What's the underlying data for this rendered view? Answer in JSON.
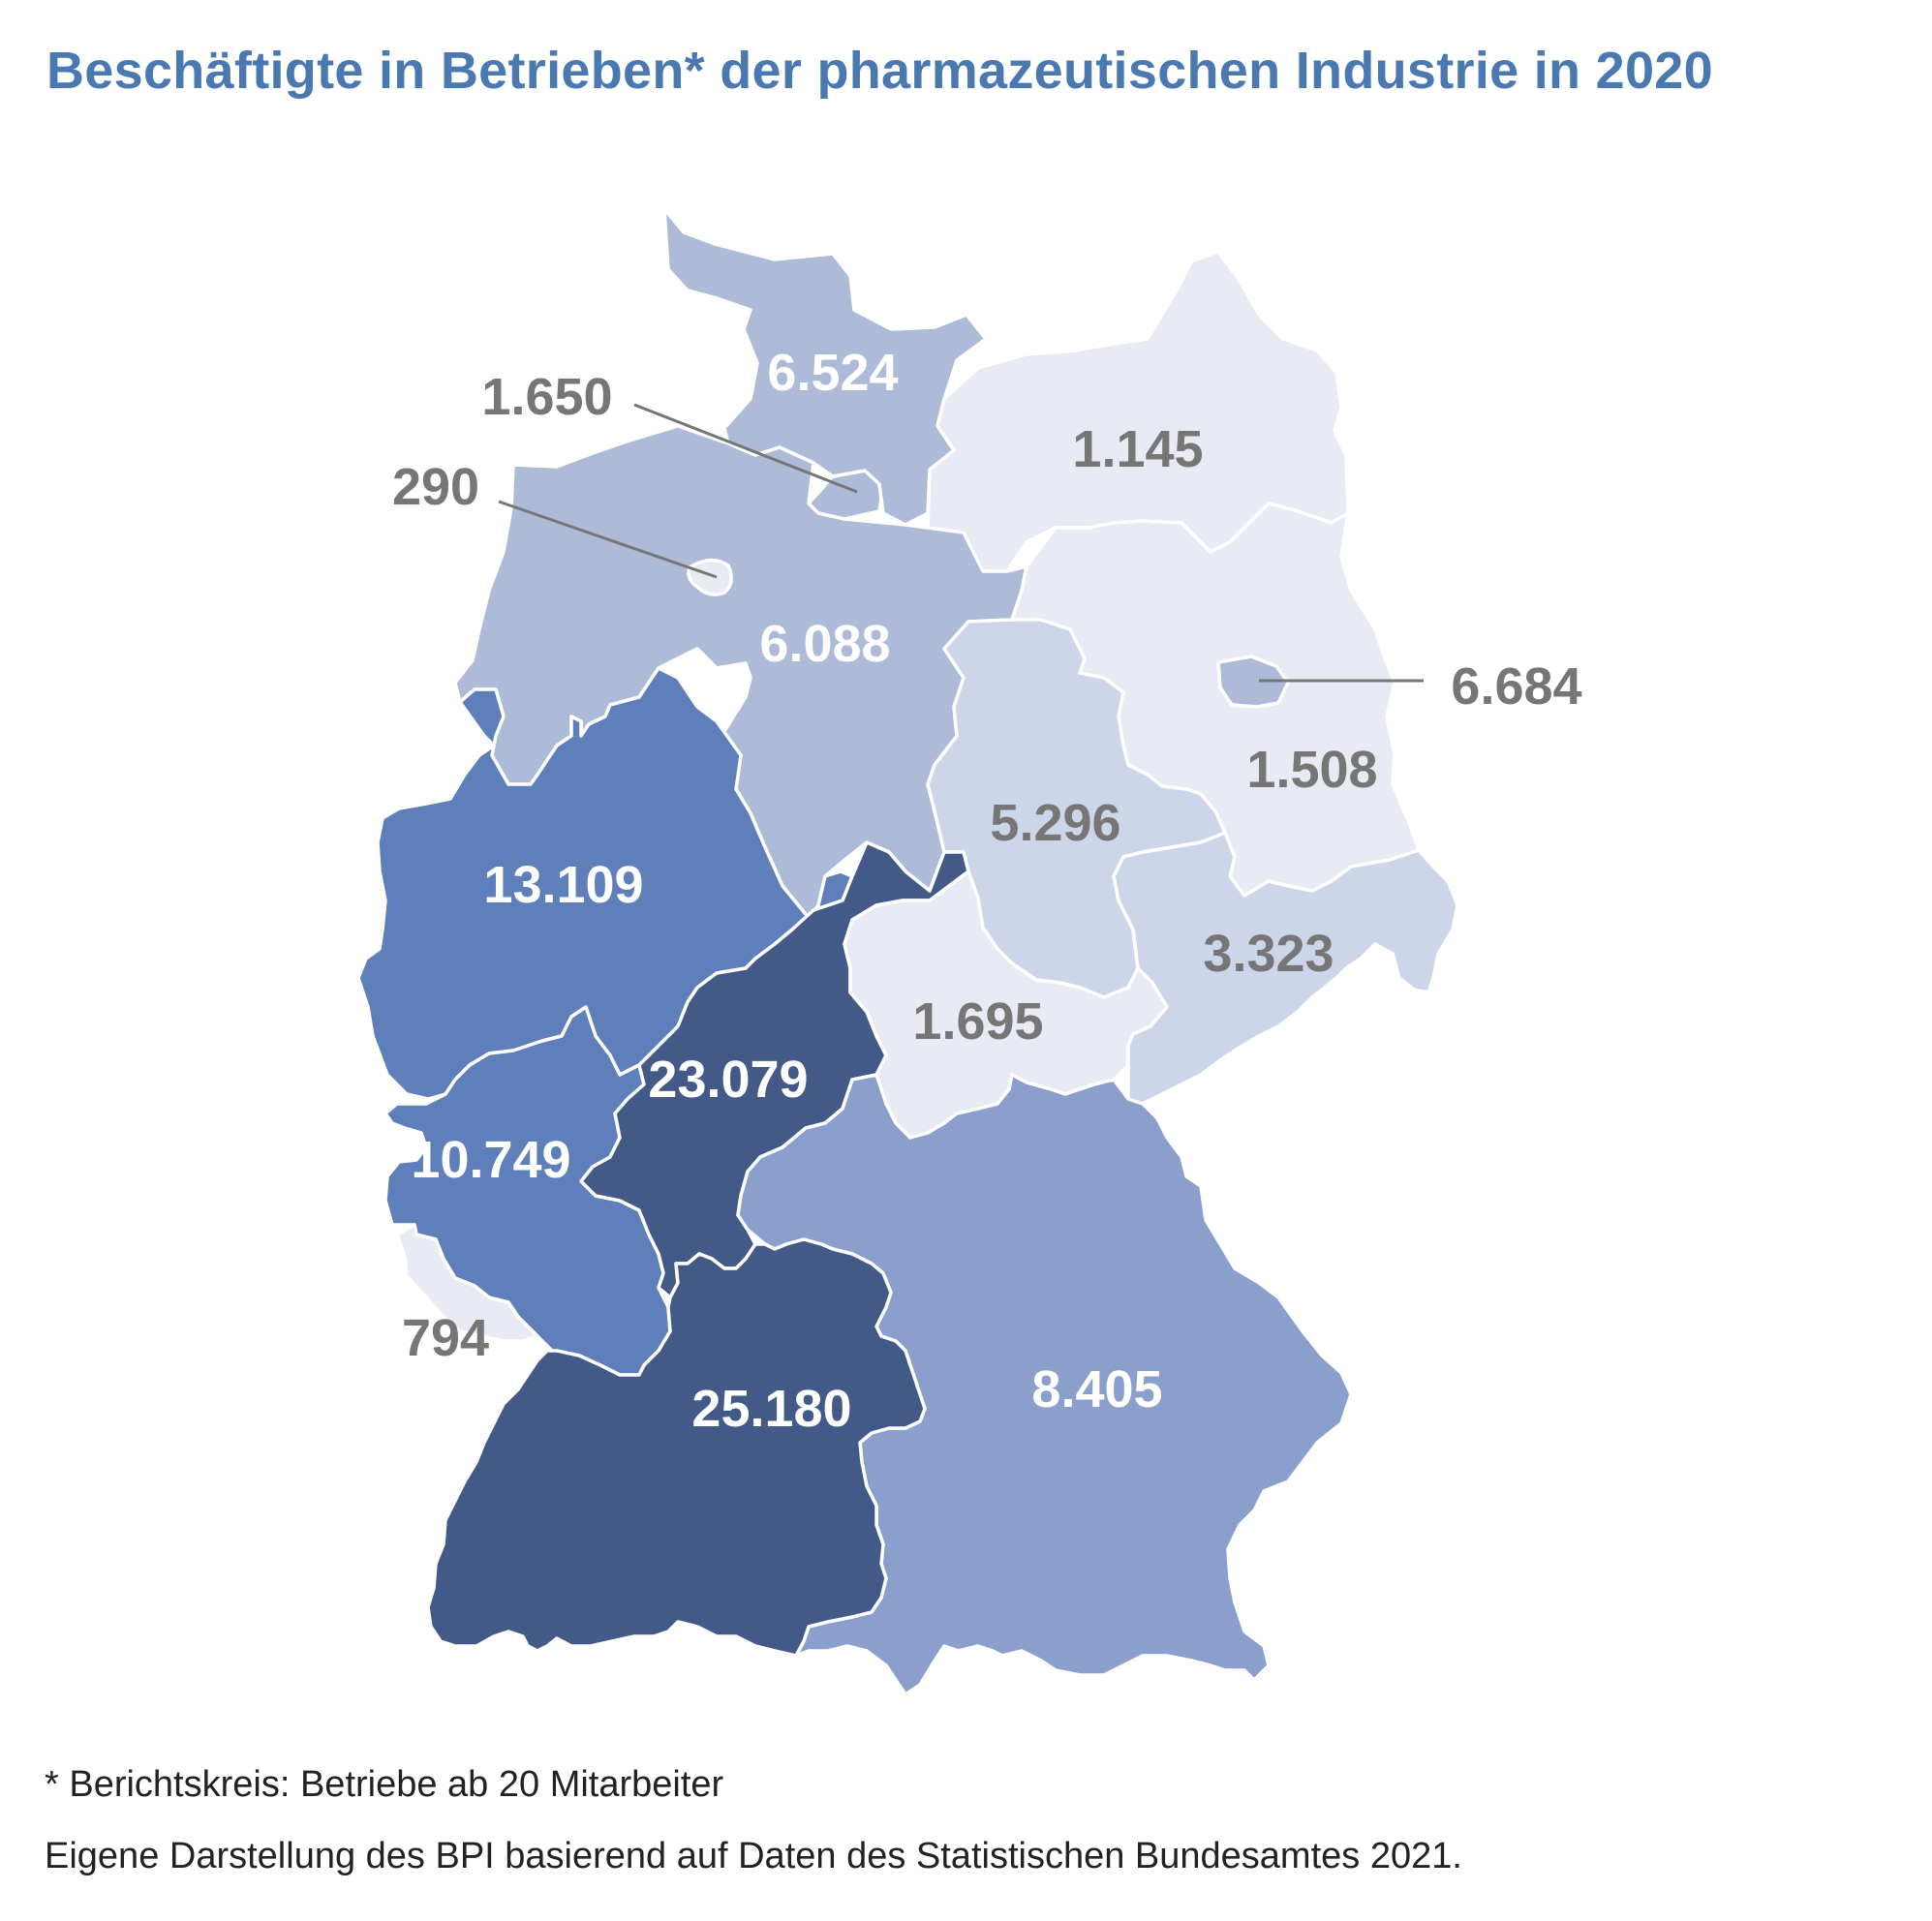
{
  "title": "Beschäftigte in Betrieben* der pharmazeutischen Industrie in 2020",
  "footnotes": {
    "scope": "* Berichtskreis: Betriebe ab 20 Mitarbeiter",
    "source": "Eigene Darstellung des BPI basierend auf Daten des Statistischen Bundesamtes 2021."
  },
  "colors": {
    "title": "#4a78b0",
    "dark_label": "#767676",
    "light_label": "#ffffff",
    "border": "#ffffff",
    "level_1": "#e8ebf4",
    "level_2": "#cdd5e8",
    "level_3": "#adbbd9",
    "level_4": "#8a9fcc",
    "level_5": "#5f7fba",
    "level_6": "#435a88"
  },
  "map_data": {
    "type": "choropleth",
    "regions": [
      {
        "key": "schleswig_holstein",
        "value": 6524,
        "label": "6.524",
        "color": "#adbbd9",
        "label_color": "#ffffff"
      },
      {
        "key": "hamburg",
        "value": 1650,
        "label": "1.650",
        "color": "#adbbd9",
        "label_color": "#767676"
      },
      {
        "key": "bremen",
        "value": 290,
        "label": "290",
        "color": "#e8ebf4",
        "label_color": "#767676"
      },
      {
        "key": "mecklenburg_vorpommern",
        "value": 1145,
        "label": "1.145",
        "color": "#e8ebf4",
        "label_color": "#767676"
      },
      {
        "key": "niedersachsen",
        "value": 6088,
        "label": "6.088",
        "color": "#adbbd9",
        "label_color": "#ffffff"
      },
      {
        "key": "berlin",
        "value": 6684,
        "label": "6.684",
        "color": "#adbbd9",
        "label_color": "#767676"
      },
      {
        "key": "brandenburg",
        "value": 1508,
        "label": "1.508",
        "color": "#e8ebf4",
        "label_color": "#767676"
      },
      {
        "key": "sachsen_anhalt",
        "value": 5296,
        "label": "5.296",
        "color": "#cdd5e8",
        "label_color": "#767676"
      },
      {
        "key": "nordrhein_westfalen",
        "value": 13109,
        "label": "13.109",
        "color": "#5f7fba",
        "label_color": "#ffffff"
      },
      {
        "key": "sachsen",
        "value": 3323,
        "label": "3.323",
        "color": "#cdd5e8",
        "label_color": "#767676"
      },
      {
        "key": "thueringen",
        "value": 1695,
        "label": "1.695",
        "color": "#e8ebf4",
        "label_color": "#767676"
      },
      {
        "key": "hessen",
        "value": 23079,
        "label": "23.079",
        "color": "#435a88",
        "label_color": "#ffffff"
      },
      {
        "key": "rheinland_pfalz",
        "value": 10749,
        "label": "10.749",
        "color": "#5f7fba",
        "label_color": "#ffffff"
      },
      {
        "key": "saarland",
        "value": 794,
        "label": "794",
        "color": "#e8ebf4",
        "label_color": "#767676"
      },
      {
        "key": "bayern",
        "value": 8405,
        "label": "8.405",
        "color": "#8a9fcc",
        "label_color": "#ffffff"
      },
      {
        "key": "baden_wuerttemberg",
        "value": 25180,
        "label": "25.180",
        "color": "#435a88",
        "label_color": "#ffffff"
      }
    ]
  }
}
